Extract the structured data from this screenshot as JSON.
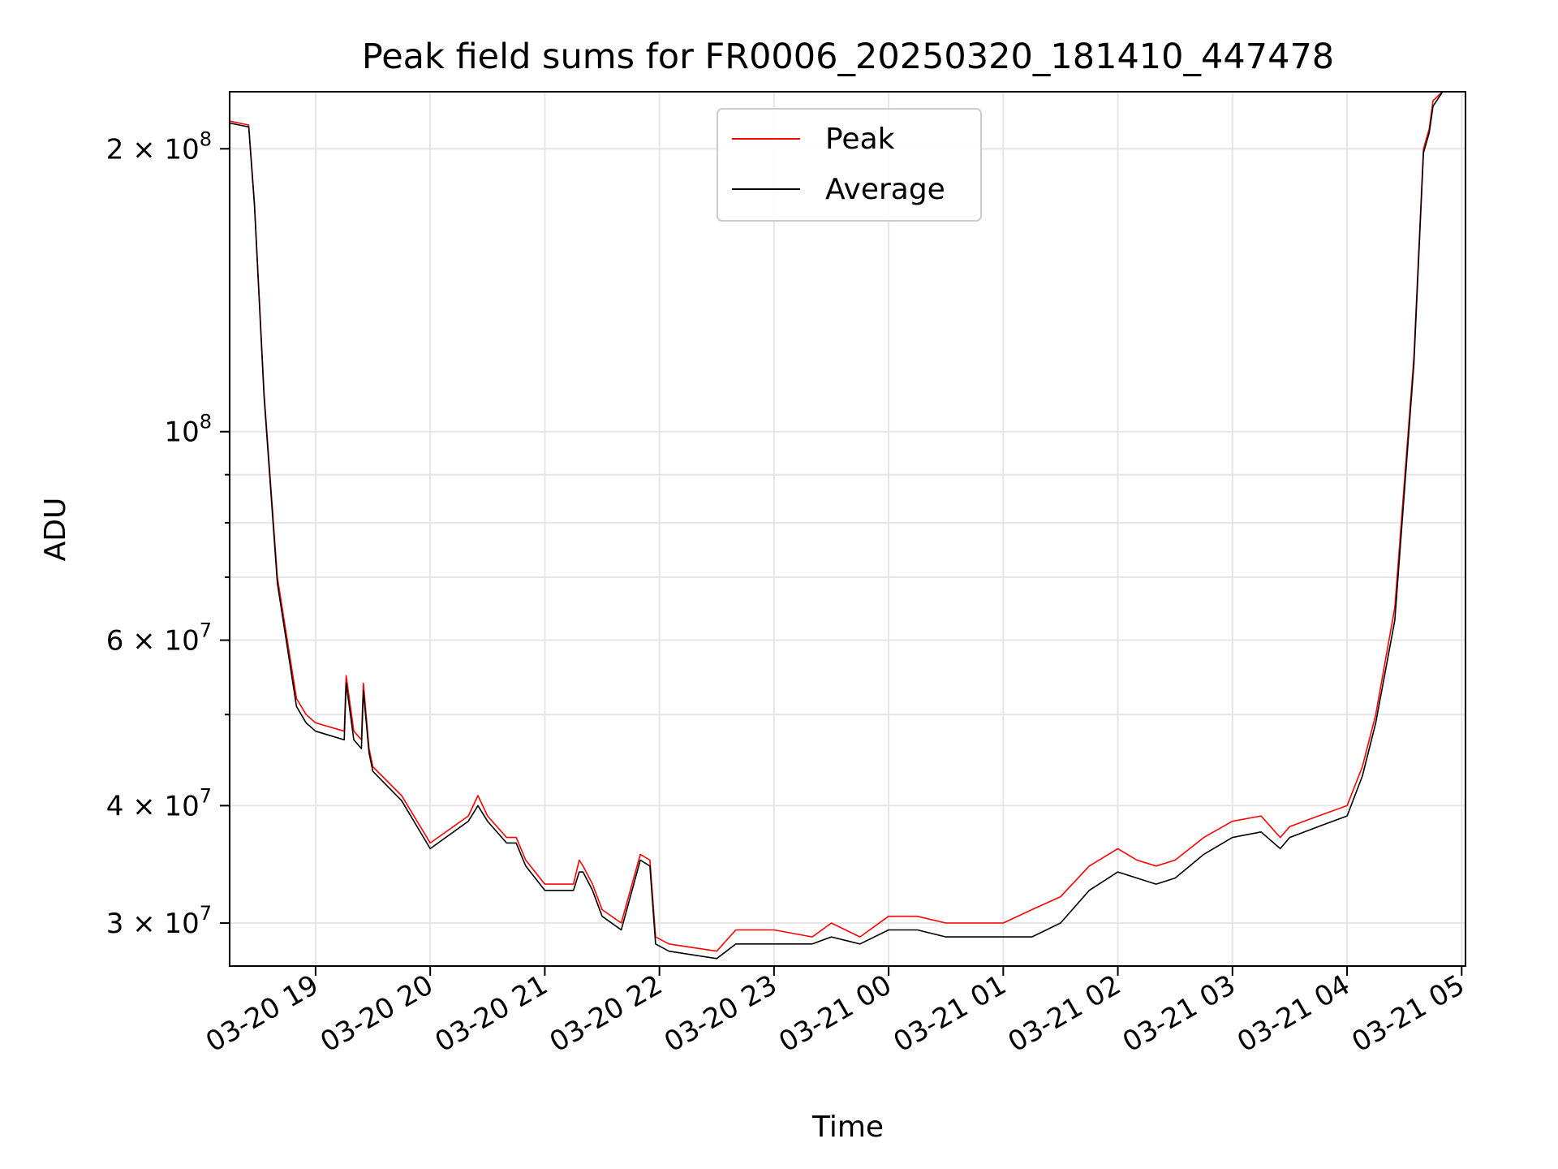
{
  "chart_data": {
    "type": "line",
    "title": "Peak field sums for FR0006_20250320_181410_447478",
    "xlabel": "Time",
    "ylabel": "ADU",
    "x_scale": "time",
    "y_scale": "log",
    "xlim": [
      "2025-03-20 18:15",
      "2025-03-21 05:02"
    ],
    "ylim": [
      27000000,
      230000000
    ],
    "grid": true,
    "legend_position": "top-center",
    "x_ticks": [
      {
        "value": "2025-03-20 19:00",
        "label": "03-20 19"
      },
      {
        "value": "2025-03-20 20:00",
        "label": "03-20 20"
      },
      {
        "value": "2025-03-20 21:00",
        "label": "03-20 21"
      },
      {
        "value": "2025-03-20 22:00",
        "label": "03-20 22"
      },
      {
        "value": "2025-03-20 23:00",
        "label": "03-20 23"
      },
      {
        "value": "2025-03-21 00:00",
        "label": "03-21 00"
      },
      {
        "value": "2025-03-21 01:00",
        "label": "03-21 01"
      },
      {
        "value": "2025-03-21 02:00",
        "label": "03-21 02"
      },
      {
        "value": "2025-03-21 03:00",
        "label": "03-21 03"
      },
      {
        "value": "2025-03-21 04:00",
        "label": "03-21 04"
      },
      {
        "value": "2025-03-21 05:00",
        "label": "03-21 05"
      }
    ],
    "y_ticks": [
      {
        "value": 30000000,
        "coef": "3",
        "exp": "7"
      },
      {
        "value": 40000000,
        "coef": "4",
        "exp": "7"
      },
      {
        "value": 60000000,
        "coef": "6",
        "exp": "7"
      },
      {
        "value": 100000000,
        "coef": "",
        "exp": "8"
      },
      {
        "value": 200000000,
        "coef": "2",
        "exp": "8"
      }
    ],
    "y_minor_ticks": [
      50000000,
      70000000,
      80000000,
      90000000
    ],
    "series": [
      {
        "name": "Peak",
        "color": "#ff0000",
        "x": [
          "2025-03-20 18:15",
          "2025-03-20 18:25",
          "2025-03-20 18:28",
          "2025-03-20 18:33",
          "2025-03-20 18:40",
          "2025-03-20 18:50",
          "2025-03-20 18:55",
          "2025-03-20 19:00",
          "2025-03-20 19:15",
          "2025-03-20 19:16",
          "2025-03-20 19:20",
          "2025-03-20 19:24",
          "2025-03-20 19:25",
          "2025-03-20 19:28",
          "2025-03-20 19:30",
          "2025-03-20 19:45",
          "2025-03-20 20:00",
          "2025-03-20 20:20",
          "2025-03-20 20:25",
          "2025-03-20 20:30",
          "2025-03-20 20:40",
          "2025-03-20 20:45",
          "2025-03-20 20:50",
          "2025-03-20 21:00",
          "2025-03-20 21:15",
          "2025-03-20 21:18",
          "2025-03-20 21:20",
          "2025-03-20 21:25",
          "2025-03-20 21:30",
          "2025-03-20 21:40",
          "2025-03-20 21:50",
          "2025-03-20 21:55",
          "2025-03-20 21:58",
          "2025-03-20 22:05",
          "2025-03-20 22:30",
          "2025-03-20 22:40",
          "2025-03-20 23:00",
          "2025-03-20 23:20",
          "2025-03-20 23:30",
          "2025-03-20 23:45",
          "2025-03-21 00:00",
          "2025-03-21 00:15",
          "2025-03-21 00:30",
          "2025-03-21 00:45",
          "2025-03-21 01:00",
          "2025-03-21 01:15",
          "2025-03-21 01:30",
          "2025-03-21 01:45",
          "2025-03-21 02:00",
          "2025-03-21 02:10",
          "2025-03-21 02:20",
          "2025-03-21 02:30",
          "2025-03-21 02:45",
          "2025-03-21 03:00",
          "2025-03-21 03:15",
          "2025-03-21 03:25",
          "2025-03-21 03:30",
          "2025-03-21 03:45",
          "2025-03-21 04:00",
          "2025-03-21 04:08",
          "2025-03-21 04:15",
          "2025-03-21 04:25",
          "2025-03-21 04:35",
          "2025-03-21 04:40",
          "2025-03-21 04:43",
          "2025-03-21 04:45",
          "2025-03-21 04:50",
          "2025-03-21 05:00"
        ],
        "y": [
          214000000,
          212000000,
          175000000,
          110000000,
          70000000,
          52000000,
          50000000,
          49000000,
          48000000,
          55000000,
          48000000,
          47000000,
          54000000,
          46000000,
          44000000,
          41000000,
          36500000,
          39000000,
          41000000,
          39000000,
          37000000,
          37000000,
          35000000,
          33000000,
          33000000,
          35000000,
          34500000,
          33000000,
          31000000,
          30000000,
          35500000,
          35000000,
          29000000,
          28500000,
          28000000,
          29500000,
          29500000,
          29000000,
          30000000,
          29000000,
          30500000,
          30500000,
          30000000,
          30000000,
          30000000,
          31000000,
          32000000,
          34500000,
          36000000,
          35000000,
          34500000,
          35000000,
          37000000,
          38500000,
          39000000,
          37000000,
          38000000,
          39000000,
          40000000,
          44000000,
          50000000,
          65000000,
          120000000,
          200000000,
          210000000,
          225000000,
          230000000,
          230000000
        ]
      },
      {
        "name": "Average",
        "color": "#000000",
        "x": [
          "2025-03-20 18:15",
          "2025-03-20 18:25",
          "2025-03-20 18:28",
          "2025-03-20 18:33",
          "2025-03-20 18:40",
          "2025-03-20 18:50",
          "2025-03-20 18:55",
          "2025-03-20 19:00",
          "2025-03-20 19:15",
          "2025-03-20 19:16",
          "2025-03-20 19:20",
          "2025-03-20 19:24",
          "2025-03-20 19:25",
          "2025-03-20 19:28",
          "2025-03-20 19:30",
          "2025-03-20 19:45",
          "2025-03-20 20:00",
          "2025-03-20 20:20",
          "2025-03-20 20:25",
          "2025-03-20 20:30",
          "2025-03-20 20:40",
          "2025-03-20 20:45",
          "2025-03-20 20:50",
          "2025-03-20 21:00",
          "2025-03-20 21:15",
          "2025-03-20 21:18",
          "2025-03-20 21:20",
          "2025-03-20 21:25",
          "2025-03-20 21:30",
          "2025-03-20 21:40",
          "2025-03-20 21:50",
          "2025-03-20 21:55",
          "2025-03-20 21:58",
          "2025-03-20 22:05",
          "2025-03-20 22:30",
          "2025-03-20 22:40",
          "2025-03-20 23:00",
          "2025-03-20 23:20",
          "2025-03-20 23:30",
          "2025-03-20 23:45",
          "2025-03-21 00:00",
          "2025-03-21 00:15",
          "2025-03-21 00:30",
          "2025-03-21 00:45",
          "2025-03-21 01:00",
          "2025-03-21 01:15",
          "2025-03-21 01:30",
          "2025-03-21 01:45",
          "2025-03-21 02:00",
          "2025-03-21 02:10",
          "2025-03-21 02:20",
          "2025-03-21 02:30",
          "2025-03-21 02:45",
          "2025-03-21 03:00",
          "2025-03-21 03:15",
          "2025-03-21 03:25",
          "2025-03-21 03:30",
          "2025-03-21 03:45",
          "2025-03-21 04:00",
          "2025-03-21 04:08",
          "2025-03-21 04:15",
          "2025-03-21 04:25",
          "2025-03-21 04:35",
          "2025-03-21 04:40",
          "2025-03-21 04:43",
          "2025-03-21 04:45",
          "2025-03-21 04:50",
          "2025-03-21 05:00"
        ],
        "y": [
          213000000,
          211000000,
          174000000,
          109000000,
          69000000,
          51000000,
          49000000,
          48000000,
          47000000,
          54000000,
          47000000,
          46000000,
          53000000,
          45500000,
          43500000,
          40500000,
          36000000,
          38500000,
          40000000,
          38500000,
          36500000,
          36500000,
          34500000,
          32500000,
          32500000,
          34000000,
          34000000,
          32500000,
          30500000,
          29500000,
          35000000,
          34500000,
          28500000,
          28000000,
          27500000,
          28500000,
          28500000,
          28500000,
          29000000,
          28500000,
          29500000,
          29500000,
          29000000,
          29000000,
          29000000,
          29000000,
          30000000,
          32500000,
          34000000,
          33500000,
          33000000,
          33500000,
          35500000,
          37000000,
          37500000,
          36000000,
          37000000,
          38000000,
          39000000,
          43000000,
          49000000,
          63000000,
          118000000,
          198000000,
          208000000,
          222000000,
          230000000,
          230000000
        ]
      }
    ]
  }
}
